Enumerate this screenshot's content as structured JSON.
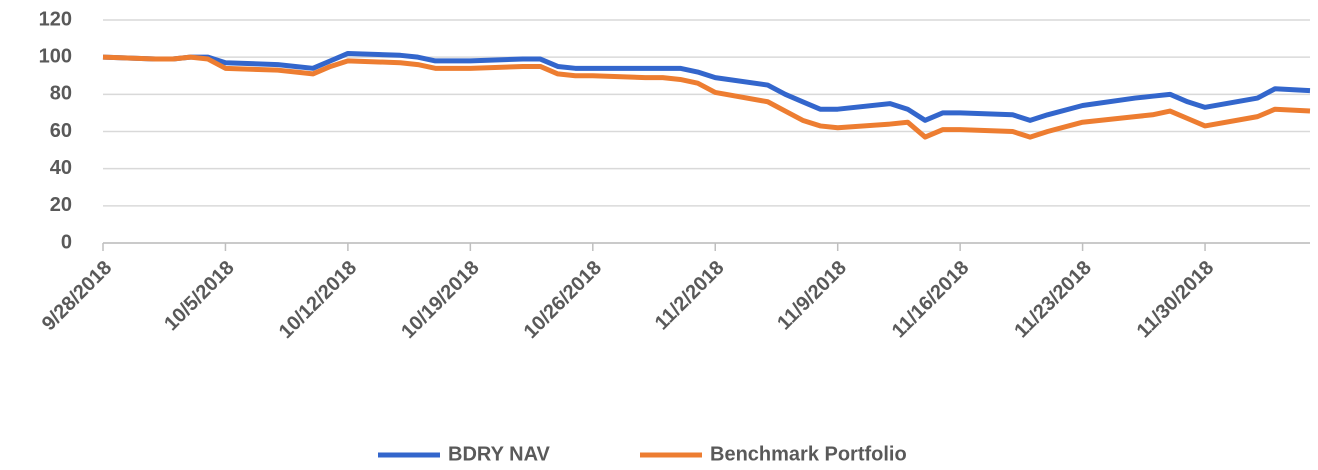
{
  "chart_data": {
    "type": "line",
    "x": [
      "9/28/2018",
      "10/1/2018",
      "10/2/2018",
      "10/3/2018",
      "10/4/2018",
      "10/5/2018",
      "10/8/2018",
      "10/9/2018",
      "10/10/2018",
      "10/11/2018",
      "10/12/2018",
      "10/15/2018",
      "10/16/2018",
      "10/17/2018",
      "10/18/2018",
      "10/19/2018",
      "10/22/2018",
      "10/23/2018",
      "10/24/2018",
      "10/25/2018",
      "10/26/2018",
      "10/29/2018",
      "10/30/2018",
      "10/31/2018",
      "11/1/2018",
      "11/2/2018",
      "11/5/2018",
      "11/6/2018",
      "11/7/2018",
      "11/8/2018",
      "11/9/2018",
      "11/12/2018",
      "11/13/2018",
      "11/14/2018",
      "11/15/2018",
      "11/16/2018",
      "11/19/2018",
      "11/20/2018",
      "11/21/2018",
      "11/23/2018",
      "11/26/2018",
      "11/27/2018",
      "11/28/2018",
      "11/29/2018",
      "11/30/2018",
      "12/3/2018",
      "12/4/2018",
      "12/6/2018"
    ],
    "series": [
      {
        "name": "BDRY NAV",
        "color": "#3366cc",
        "values": [
          100,
          99,
          99,
          100,
          100,
          97,
          96,
          95,
          94,
          98,
          102,
          101,
          100,
          98,
          98,
          98,
          99,
          99,
          95,
          94,
          94,
          94,
          94,
          94,
          92,
          89,
          85,
          80,
          76,
          72,
          72,
          75,
          72,
          66,
          70,
          70,
          69,
          66,
          69,
          74,
          78,
          79,
          80,
          76,
          73,
          78,
          83,
          82
        ]
      },
      {
        "name": "Benchmark Portfolio",
        "color": "#ed7d31",
        "values": [
          100,
          99,
          99,
          100,
          99,
          94,
          93,
          92,
          91,
          95,
          98,
          97,
          96,
          94,
          94,
          94,
          95,
          95,
          91,
          90,
          90,
          89,
          89,
          88,
          86,
          81,
          76,
          71,
          66,
          63,
          62,
          64,
          65,
          57,
          61,
          61,
          60,
          57,
          60,
          65,
          68,
          69,
          71,
          67,
          63,
          68,
          72,
          71
        ]
      }
    ],
    "xlim": [
      "9/28/2018",
      "12/6/2018"
    ],
    "xticks": [
      "9/28/2018",
      "10/5/2018",
      "10/12/2018",
      "10/19/2018",
      "10/26/2018",
      "11/2/2018",
      "11/9/2018",
      "11/16/2018",
      "11/23/2018",
      "11/30/2018"
    ],
    "ylim": [
      0,
      120
    ],
    "yticks": [
      0,
      20,
      40,
      60,
      80,
      100,
      120
    ],
    "grid": true,
    "legend": "bottom"
  }
}
